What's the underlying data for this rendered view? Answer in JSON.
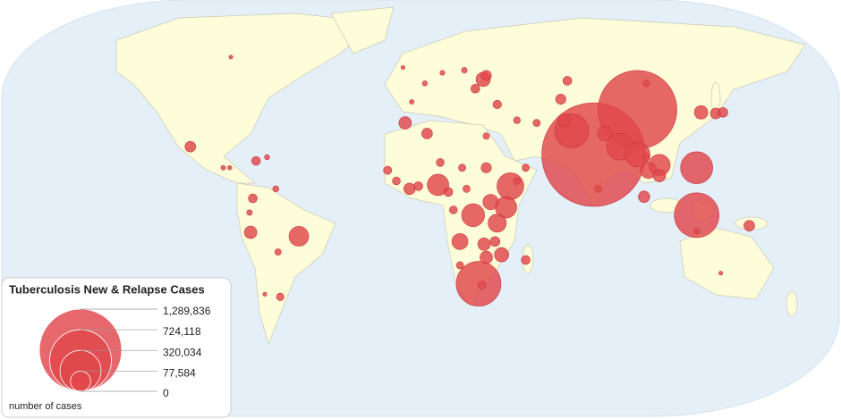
{
  "chart_data": {
    "type": "bubble_map",
    "title": "Tuberculosis New & Relapse Cases",
    "size_label": "number of cases",
    "color": "#e0474c",
    "size_ticks": [
      {
        "value": 1289836,
        "label": "1,289,836"
      },
      {
        "value": 724118,
        "label": "724,118"
      },
      {
        "value": 320034,
        "label": "320,034"
      },
      {
        "value": 77584,
        "label": "77,584"
      },
      0
    ],
    "lon": [
      79,
      99,
      126,
      126,
      69,
      91,
      99,
      109,
      104,
      109,
      26.5,
      8,
      41,
      24,
      39,
      37,
      18,
      29,
      48,
      -55.5,
      -77.5,
      -76.5,
      -105,
      -75,
      28.6,
      65.7,
      134.7,
      150,
      12.7,
      44,
      -4,
      2,
      10,
      20,
      25,
      30,
      -8,
      35,
      44,
      53,
      48,
      30,
      -7,
      3,
      -15,
      9,
      19,
      30,
      -1,
      -5,
      -11,
      21,
      15,
      32,
      35,
      34,
      30,
      18,
      28,
      84,
      81,
      67,
      64,
      103,
      138,
      128,
      102,
      103,
      126,
      -90,
      -87,
      -70,
      -78,
      -65,
      -64,
      -71,
      -66,
      -86.5,
      137
    ],
    "lat": [
      20,
      37,
      -3,
      15,
      29,
      23,
      20,
      16,
      14,
      12,
      -29,
      8.5,
      8,
      -3,
      0,
      -18,
      -13,
      -14,
      -20,
      -11,
      -9.5,
      3.4,
      23,
      17.6,
      48.5,
      33,
      35.6,
      -7,
      5.8,
      10,
      40,
      47,
      51,
      52,
      45,
      50,
      53,
      39,
      33,
      32,
      15,
      27,
      32,
      28,
      14,
      17,
      15,
      15,
      8,
      7,
      10,
      7,
      -1,
      2,
      -6,
      -13,
      -19,
      -22,
      -29.5,
      28,
      7,
      48,
      41,
      47,
      36,
      36,
      4,
      19,
      -9,
      15,
      15,
      19,
      -2,
      -17,
      -34,
      -33,
      7,
      57,
      -25
    ],
    "values": [
      2050000,
      1180000,
      381000,
      197000,
      220000,
      137000,
      119000,
      88000,
      49000,
      30000,
      381000,
      88000,
      137000,
      100000,
      88000,
      39000,
      49000,
      30000,
      15000,
      74000,
      30000,
      15000,
      22000,
      15000,
      39000,
      30000,
      22000,
      22000,
      15000,
      10000,
      4000,
      5000,
      4500,
      6000,
      15000,
      20000,
      3000,
      14000,
      9000,
      10000,
      10000,
      8000,
      30000,
      22000,
      13000,
      12000,
      10000,
      20000,
      15000,
      25000,
      12000,
      10000,
      12000,
      45000,
      63000,
      18000,
      30000,
      10000,
      12000,
      40000,
      10000,
      15000,
      20000,
      8000,
      18000,
      35000,
      25000,
      10000,
      6000,
      4000,
      3500,
      5000,
      6000,
      8000,
      11000,
      3000,
      7000,
      3000,
      3000
    ]
  }
}
